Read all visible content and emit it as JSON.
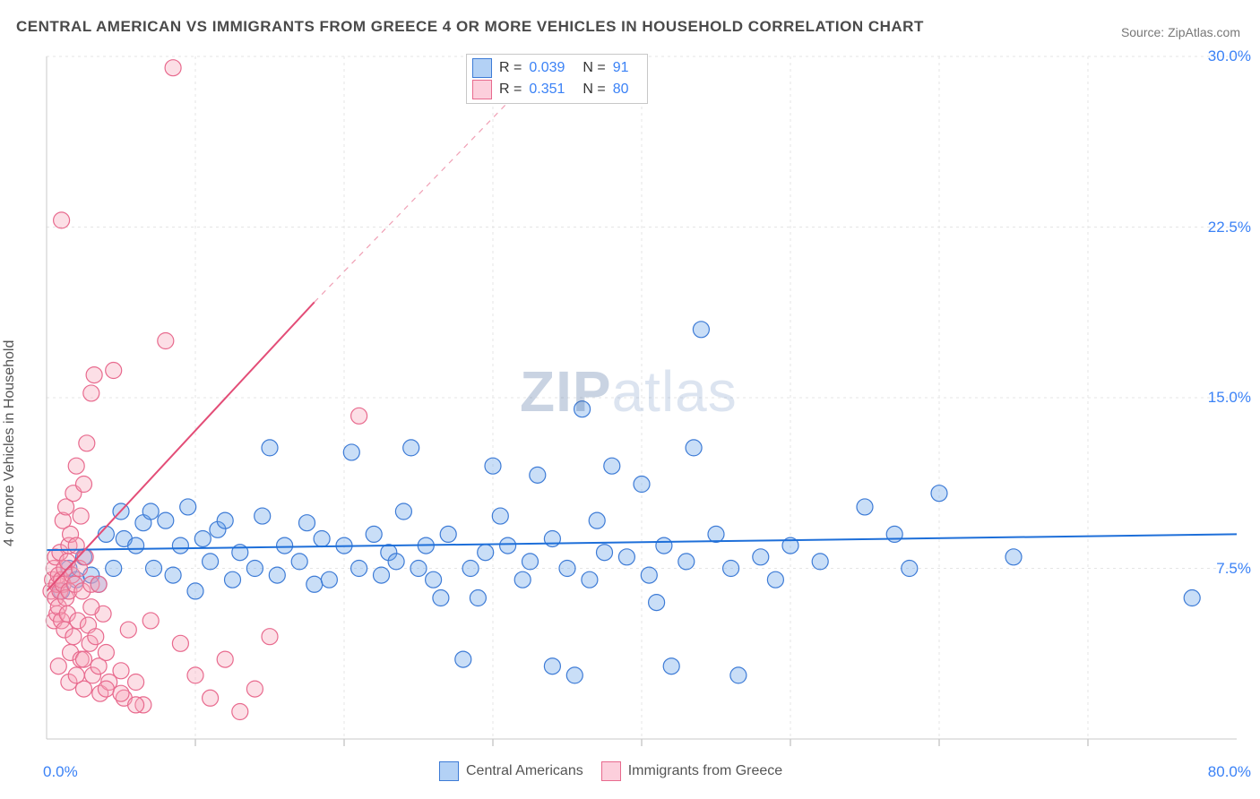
{
  "title": "CENTRAL AMERICAN VS IMMIGRANTS FROM GREECE 4 OR MORE VEHICLES IN HOUSEHOLD CORRELATION CHART",
  "source": "Source: ZipAtlas.com",
  "ylabel": "4 or more Vehicles in Household",
  "watermark_zip": "ZIP",
  "watermark_atlas": "atlas",
  "chart": {
    "type": "scatter",
    "background_color": "#ffffff",
    "grid_color": "#e5e5e5",
    "axis_color": "#d0d0d0",
    "tick_label_color": "#3b82f6",
    "tick_fontsize": 17,
    "xlim": [
      0,
      80
    ],
    "ylim": [
      0,
      30
    ],
    "xtick_start": "0.0%",
    "xtick_end": "80.0%",
    "yticks": [
      {
        "value": 7.5,
        "label": "7.5%"
      },
      {
        "value": 15.0,
        "label": "15.0%"
      },
      {
        "value": 22.5,
        "label": "22.5%"
      },
      {
        "value": 30.0,
        "label": "30.0%"
      }
    ],
    "xgrid_step": 10,
    "marker_radius": 9,
    "marker_fill_opacity": 0.35,
    "series": [
      {
        "name": "Central Americans",
        "color": "#63a0e8",
        "stroke": "#3d7bd6",
        "R": "0.039",
        "N": "91",
        "trend": {
          "x1": 0,
          "y1": 8.3,
          "x2": 80,
          "y2": 9.0,
          "color": "#1e6fd9",
          "width": 2
        },
        "points": [
          [
            1,
            6.5
          ],
          [
            1.5,
            7.5
          ],
          [
            2,
            7
          ],
          [
            2.5,
            8
          ],
          [
            3,
            7.2
          ],
          [
            3.5,
            6.8
          ],
          [
            4,
            9
          ],
          [
            4.5,
            7.5
          ],
          [
            5,
            10
          ],
          [
            5.2,
            8.8
          ],
          [
            6,
            8.5
          ],
          [
            6.5,
            9.5
          ],
          [
            7,
            10
          ],
          [
            7.2,
            7.5
          ],
          [
            8,
            9.6
          ],
          [
            8.5,
            7.2
          ],
          [
            9,
            8.5
          ],
          [
            9.5,
            10.2
          ],
          [
            10,
            6.5
          ],
          [
            10.5,
            8.8
          ],
          [
            11,
            7.8
          ],
          [
            11.5,
            9.2
          ],
          [
            12,
            9.6
          ],
          [
            12.5,
            7
          ],
          [
            13,
            8.2
          ],
          [
            14,
            7.5
          ],
          [
            14.5,
            9.8
          ],
          [
            15,
            12.8
          ],
          [
            15.5,
            7.2
          ],
          [
            16,
            8.5
          ],
          [
            17,
            7.8
          ],
          [
            17.5,
            9.5
          ],
          [
            18,
            6.8
          ],
          [
            18.5,
            8.8
          ],
          [
            19,
            7
          ],
          [
            20,
            8.5
          ],
          [
            20.5,
            12.6
          ],
          [
            21,
            7.5
          ],
          [
            22,
            9
          ],
          [
            22.5,
            7.2
          ],
          [
            23,
            8.2
          ],
          [
            23.5,
            7.8
          ],
          [
            24,
            10
          ],
          [
            24.5,
            12.8
          ],
          [
            25,
            7.5
          ],
          [
            25.5,
            8.5
          ],
          [
            26,
            7
          ],
          [
            26.5,
            6.2
          ],
          [
            27,
            9
          ],
          [
            28,
            3.5
          ],
          [
            28.5,
            7.5
          ],
          [
            29,
            6.2
          ],
          [
            29.5,
            8.2
          ],
          [
            30,
            12
          ],
          [
            30.5,
            9.8
          ],
          [
            31,
            8.5
          ],
          [
            32,
            7
          ],
          [
            32.5,
            7.8
          ],
          [
            33,
            11.6
          ],
          [
            34,
            8.8
          ],
          [
            34,
            3.2
          ],
          [
            35,
            7.5
          ],
          [
            35.5,
            2.8
          ],
          [
            36,
            14.5
          ],
          [
            36.5,
            7
          ],
          [
            37,
            9.6
          ],
          [
            37.5,
            8.2
          ],
          [
            38,
            12
          ],
          [
            39,
            8
          ],
          [
            40,
            11.2
          ],
          [
            40.5,
            7.2
          ],
          [
            41,
            6
          ],
          [
            41.5,
            8.5
          ],
          [
            42,
            3.2
          ],
          [
            43,
            7.8
          ],
          [
            43.5,
            12.8
          ],
          [
            44,
            18
          ],
          [
            45,
            9
          ],
          [
            46,
            7.5
          ],
          [
            46.5,
            2.8
          ],
          [
            48,
            8
          ],
          [
            49,
            7
          ],
          [
            50,
            8.5
          ],
          [
            52,
            7.8
          ],
          [
            55,
            10.2
          ],
          [
            57,
            9
          ],
          [
            58,
            7.5
          ],
          [
            60,
            10.8
          ],
          [
            65,
            8
          ],
          [
            77,
            6.2
          ]
        ]
      },
      {
        "name": "Immigrants from Greece",
        "color": "#f5a3b8",
        "stroke": "#e86a8e",
        "R": "0.351",
        "N": "80",
        "trend_solid": {
          "x1": 0,
          "y1": 6.5,
          "x2": 18,
          "y2": 19.2,
          "color": "#e34d77",
          "width": 2
        },
        "trend_dash": {
          "x1": 18,
          "y1": 19.2,
          "x2": 34,
          "y2": 30,
          "color": "#f0a0b5",
          "width": 1.2
        },
        "points": [
          [
            0.3,
            6.5
          ],
          [
            0.4,
            7
          ],
          [
            0.5,
            5.2
          ],
          [
            0.5,
            7.5
          ],
          [
            0.6,
            6.2
          ],
          [
            0.6,
            8
          ],
          [
            0.7,
            5.5
          ],
          [
            0.7,
            6.8
          ],
          [
            0.8,
            7.2
          ],
          [
            0.8,
            5.8
          ],
          [
            0.9,
            6.5
          ],
          [
            0.9,
            8.2
          ],
          [
            1,
            7
          ],
          [
            1,
            5.2
          ],
          [
            1.1,
            6.8
          ],
          [
            1.1,
            9.6
          ],
          [
            1.2,
            7.5
          ],
          [
            1.2,
            4.8
          ],
          [
            1.3,
            6.2
          ],
          [
            1.3,
            10.2
          ],
          [
            1.4,
            7.8
          ],
          [
            1.4,
            5.5
          ],
          [
            1.5,
            8.5
          ],
          [
            1.5,
            6.5
          ],
          [
            1.6,
            3.8
          ],
          [
            1.6,
            9
          ],
          [
            1.7,
            7.2
          ],
          [
            1.8,
            10.8
          ],
          [
            1.8,
            4.5
          ],
          [
            1.9,
            6.8
          ],
          [
            2,
            8.5
          ],
          [
            2,
            12
          ],
          [
            2.1,
            5.2
          ],
          [
            2.2,
            7.5
          ],
          [
            2.3,
            9.8
          ],
          [
            2.3,
            3.5
          ],
          [
            2.4,
            6.5
          ],
          [
            2.5,
            11.2
          ],
          [
            2.5,
            2.2
          ],
          [
            2.6,
            8
          ],
          [
            2.7,
            13
          ],
          [
            2.8,
            5
          ],
          [
            2.9,
            4.2
          ],
          [
            3,
            6.8
          ],
          [
            3,
            15.2
          ],
          [
            3.1,
            2.8
          ],
          [
            3.2,
            16
          ],
          [
            3.3,
            4.5
          ],
          [
            3.5,
            3.2
          ],
          [
            3.6,
            2
          ],
          [
            3.8,
            5.5
          ],
          [
            4,
            3.8
          ],
          [
            4.2,
            2.5
          ],
          [
            4.5,
            16.2
          ],
          [
            5,
            3
          ],
          [
            5.2,
            1.8
          ],
          [
            5.5,
            4.8
          ],
          [
            6,
            2.5
          ],
          [
            6.5,
            1.5
          ],
          [
            7,
            5.2
          ],
          [
            8,
            17.5
          ],
          [
            8.5,
            29.5
          ],
          [
            9,
            4.2
          ],
          [
            10,
            2.8
          ],
          [
            11,
            1.8
          ],
          [
            12,
            3.5
          ],
          [
            13,
            1.2
          ],
          [
            14,
            2.2
          ],
          [
            15,
            4.5
          ],
          [
            21,
            14.2
          ],
          [
            1,
            22.8
          ],
          [
            0.8,
            3.2
          ],
          [
            1.5,
            2.5
          ],
          [
            2,
            2.8
          ],
          [
            2.5,
            3.5
          ],
          [
            3,
            5.8
          ],
          [
            3.5,
            6.8
          ],
          [
            4,
            2.2
          ],
          [
            5,
            2
          ],
          [
            6,
            1.5
          ]
        ]
      }
    ],
    "top_legend": {
      "rows": [
        {
          "swatch_fill": "#b3d1f5",
          "swatch_border": "#3d7bd6",
          "R": "0.039",
          "N": "91"
        },
        {
          "swatch_fill": "#fccfdc",
          "swatch_border": "#e86a8e",
          "R": "0.351",
          "N": "80"
        }
      ]
    },
    "bottom_legend": {
      "items": [
        {
          "swatch_fill": "#b3d1f5",
          "swatch_border": "#3d7bd6",
          "label": "Central Americans"
        },
        {
          "swatch_fill": "#fccfdc",
          "swatch_border": "#e86a8e",
          "label": "Immigrants from Greece"
        }
      ]
    }
  }
}
